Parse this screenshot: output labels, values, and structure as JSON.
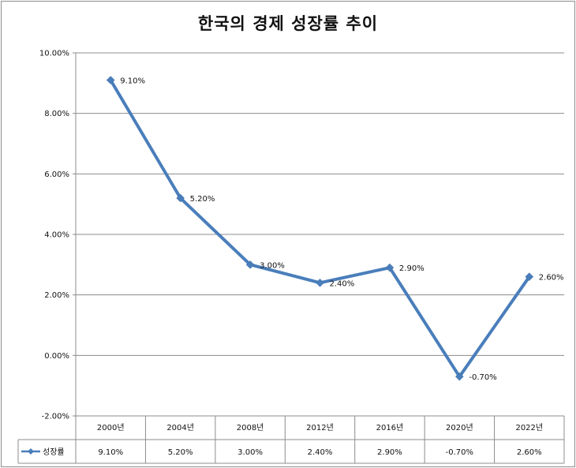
{
  "chart_data": {
    "type": "line",
    "title": "한국의 경제 성장률 추이",
    "categories": [
      "2000년",
      "2004년",
      "2008년",
      "2012년",
      "2016년",
      "2020년",
      "2022년"
    ],
    "series": [
      {
        "name": "성장률",
        "values": [
          9.1,
          5.2,
          3.0,
          2.4,
          2.9,
          -0.7,
          2.6
        ],
        "labels": [
          "9.10%",
          "5.20%",
          "3.00%",
          "2.40%",
          "2.90%",
          "-0.70%",
          "2.60%"
        ],
        "color": "#4a7ebb"
      }
    ],
    "ylim": [
      -2,
      10
    ],
    "yticks": [
      {
        "v": 10,
        "label": "10.00%"
      },
      {
        "v": 8,
        "label": "8.00%"
      },
      {
        "v": 6,
        "label": "6.00%"
      },
      {
        "v": 4,
        "label": "4.00%"
      },
      {
        "v": 2,
        "label": "2.00%"
      },
      {
        "v": 0,
        "label": "0.00%"
      },
      {
        "v": -2,
        "label": "-2.00%"
      }
    ],
    "grid": true,
    "legend": "data-table-left",
    "data_table": true
  }
}
